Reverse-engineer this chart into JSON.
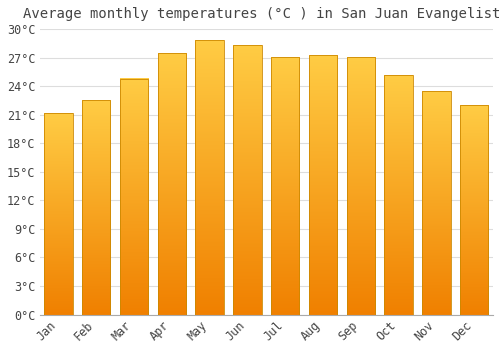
{
  "title": "Average monthly temperatures (°C ) in San Juan Evangelista",
  "months": [
    "Jan",
    "Feb",
    "Mar",
    "Apr",
    "May",
    "Jun",
    "Jul",
    "Aug",
    "Sep",
    "Oct",
    "Nov",
    "Dec"
  ],
  "values": [
    21.2,
    22.5,
    24.8,
    27.5,
    28.8,
    28.3,
    27.1,
    27.3,
    27.1,
    25.2,
    23.5,
    22.0
  ],
  "bar_color_top": "#FFCC44",
  "bar_color_bottom": "#F08000",
  "bar_edge_color": "#CC8800",
  "background_color": "#FFFFFF",
  "grid_color": "#DDDDDD",
  "text_color": "#444444",
  "ytick_labels": [
    "0°C",
    "3°C",
    "6°C",
    "9°C",
    "12°C",
    "15°C",
    "18°C",
    "21°C",
    "24°C",
    "27°C",
    "30°C"
  ],
  "ytick_values": [
    0,
    3,
    6,
    9,
    12,
    15,
    18,
    21,
    24,
    27,
    30
  ],
  "ylim": [
    0,
    30
  ],
  "title_fontsize": 10,
  "tick_fontsize": 8.5,
  "bar_width": 0.75
}
